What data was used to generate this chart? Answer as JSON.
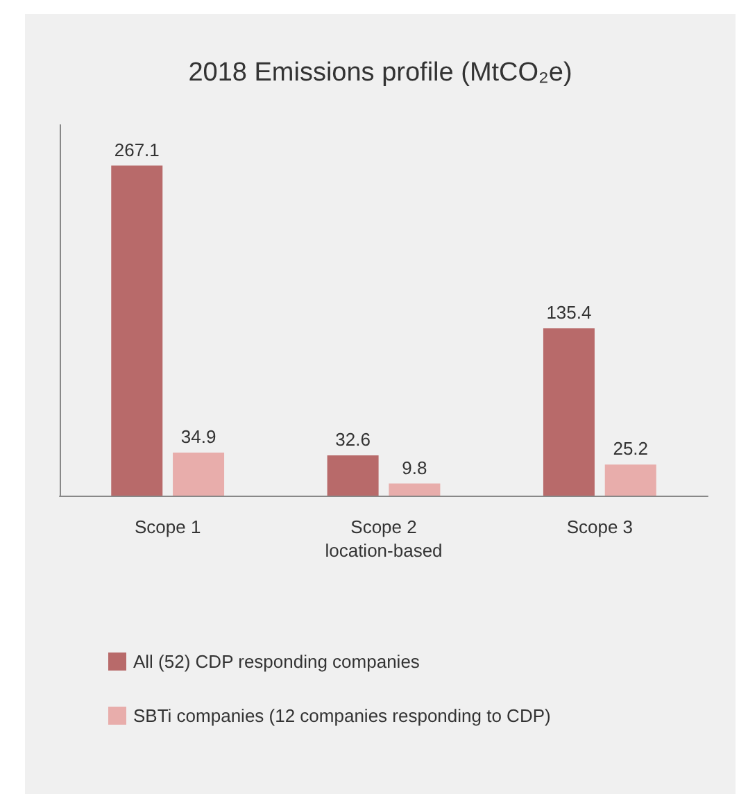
{
  "chart_data": {
    "type": "bar",
    "title": "2018 Emissions profile (MtCO₂e)",
    "categories": [
      "Scope 1",
      "Scope 2\nlocation-based",
      "Scope 3"
    ],
    "series": [
      {
        "name": "All (52) CDP responding companies",
        "color": "#b86a6a",
        "values": [
          267.1,
          32.6,
          135.4
        ]
      },
      {
        "name": "SBTi companies (12 companies responding to CDP)",
        "color": "#e8adab",
        "values": [
          34.9,
          9.8,
          25.2
        ]
      }
    ],
    "data_labels": true,
    "tick_labels": "x",
    "grid": false,
    "legend": "bottom left"
  }
}
